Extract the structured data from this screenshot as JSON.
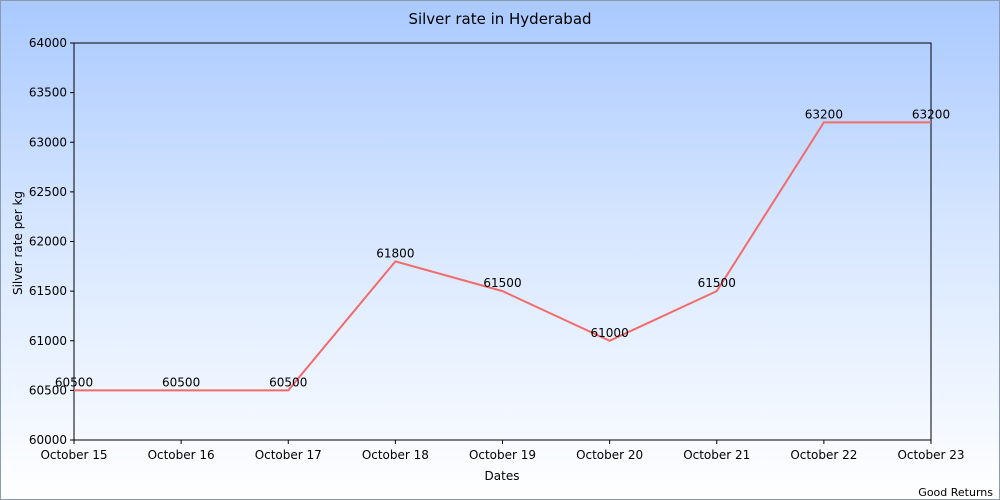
{
  "chart_data": {
    "type": "line",
    "title": "Silver rate in Hyderabad",
    "xlabel": "Dates",
    "ylabel": "Silver rate per kg",
    "categories": [
      "October 15",
      "October 16",
      "October 17",
      "October 18",
      "October 19",
      "October 20",
      "October 21",
      "October 22",
      "October 23"
    ],
    "series": [
      {
        "values": [
          60500,
          60500,
          60500,
          61800,
          61500,
          61000,
          61500,
          63200,
          63200
        ]
      }
    ],
    "ylim": [
      60000,
      64000
    ],
    "yticks": [
      60000,
      60500,
      61000,
      61500,
      62000,
      62500,
      63000,
      63500,
      64000
    ],
    "grid": false,
    "line_color": "#f26b6b",
    "source": "Good Returns"
  }
}
